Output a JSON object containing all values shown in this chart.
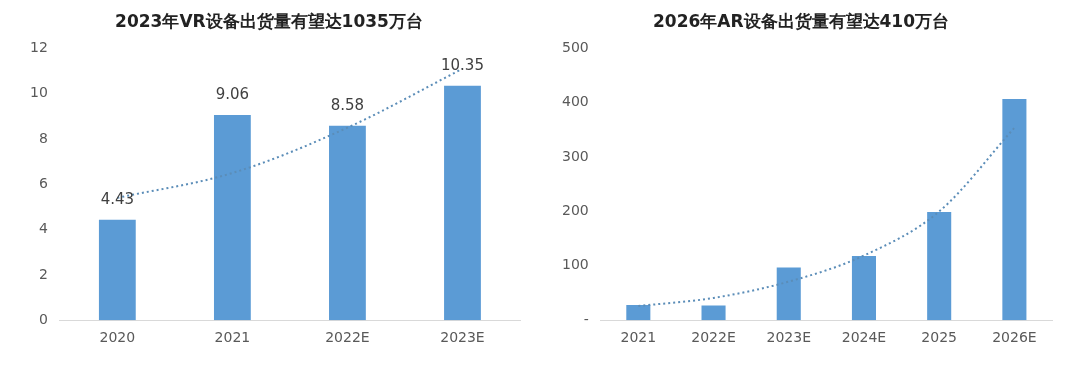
{
  "chart_data": [
    {
      "type": "bar",
      "title": "2023年VR设备出货量有望达1035万台",
      "categories": [
        "2020",
        "2021",
        "2022E",
        "2023E"
      ],
      "ylim": [
        0,
        12
      ],
      "yticks": [
        0,
        2,
        4,
        6,
        8,
        10,
        12
      ],
      "grid": false,
      "legend": false,
      "series": [
        {
          "color": "#5b9bd5",
          "values": [
            4.43,
            9.06,
            8.58,
            10.35
          ],
          "value_labels": [
            "4.43",
            "9.06",
            "8.58",
            "10.35"
          ]
        },
        {
          "type": "line",
          "color": "#5b8db8",
          "values": [
            5.4,
            6.5,
            8.5,
            11.1
          ],
          "line_style": "dotted",
          "marker": "none"
        }
      ]
    },
    {
      "type": "bar",
      "title": "2026年AR设备出货量有望达410万台",
      "categories": [
        "2021",
        "2022E",
        "2023E",
        "2024E",
        "2025",
        "2026E"
      ],
      "ylim": [
        0,
        500
      ],
      "yticks": [
        {
          "value": 0,
          "label": "-"
        },
        100,
        200,
        300,
        400,
        500
      ],
      "grid": false,
      "legend": false,
      "series": [
        {
          "color": "#5b9bd5",
          "values": [
            28,
            27,
            97,
            118,
            199,
            407
          ]
        },
        {
          "type": "line",
          "color": "#5b8db8",
          "values": [
            26,
            41,
            71,
            119,
            200,
            354
          ],
          "line_style": "dotted",
          "marker": "none"
        }
      ]
    }
  ]
}
